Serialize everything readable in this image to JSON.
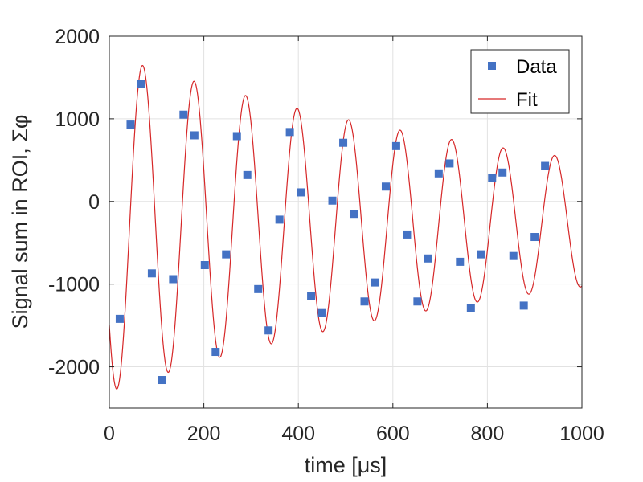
{
  "chart_data": {
    "type": "scatter",
    "xlabel": "time [μs]",
    "ylabel": "Signal sum in ROI,  Σφ",
    "xlim": [
      0,
      1000
    ],
    "ylim": [
      -2500,
      2000
    ],
    "xticks": [
      0,
      200,
      400,
      600,
      800,
      1000
    ],
    "xtick_labels": [
      "0",
      "200",
      "400",
      "600",
      "800",
      "1000"
    ],
    "yticks": [
      -2000,
      -1000,
      0,
      1000,
      2000
    ],
    "ytick_labels": [
      "-2000",
      "-1000",
      "0",
      "1000",
      "2000"
    ],
    "grid": true,
    "legend_position": "top-right",
    "series": [
      {
        "name": "Data",
        "kind": "scatter",
        "marker": "square",
        "color": "#4472c4",
        "x": [
          22,
          45,
          67,
          90,
          112,
          135,
          157,
          180,
          202,
          225,
          247,
          270,
          292,
          315,
          337,
          360,
          382,
          405,
          427,
          450,
          472,
          495,
          517,
          540,
          562,
          585,
          607,
          630,
          652,
          675,
          697,
          720,
          742,
          765,
          787,
          810,
          832,
          855,
          877,
          900,
          922
        ],
        "y": [
          -1420,
          930,
          1420,
          -870,
          -2160,
          -940,
          1050,
          800,
          -770,
          -1820,
          -640,
          790,
          320,
          -1060,
          -1560,
          -220,
          840,
          110,
          -1140,
          -1350,
          10,
          710,
          -150,
          -1210,
          -980,
          180,
          670,
          -400,
          -1210,
          -690,
          340,
          460,
          -730,
          -1290,
          -640,
          280,
          350,
          -660,
          -1260,
          -430,
          430
        ]
      },
      {
        "name": "Fit",
        "kind": "line",
        "color": "#d62728",
        "model": {
          "offset": -260,
          "amplitude": 2040,
          "decay_time_us": 1030,
          "period_us": 109,
          "phase_rad": 2.22,
          "x_min": 0,
          "x_max": 1000
        }
      }
    ]
  }
}
